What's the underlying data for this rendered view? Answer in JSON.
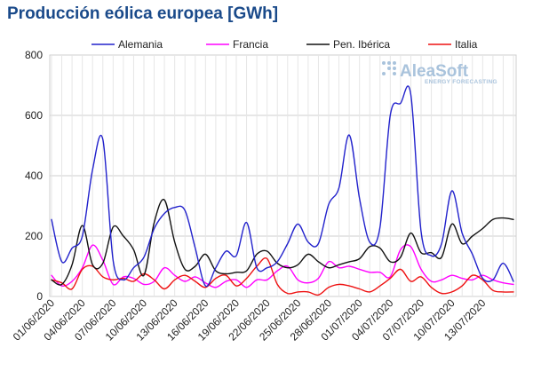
{
  "chart_data": {
    "type": "line",
    "title": "Producción eólica europea [GWh]",
    "xlabel": "",
    "ylabel": "",
    "ylim": [
      0,
      800
    ],
    "yticks": [
      0,
      200,
      400,
      600,
      800
    ],
    "grid": true,
    "legend": "top",
    "x_labels": [
      "01/06/2020",
      "04/06/2020",
      "07/06/2020",
      "10/06/2020",
      "13/06/2020",
      "16/06/2020",
      "19/06/2020",
      "22/06/2020",
      "25/06/2020",
      "28/06/2020",
      "01/07/2020",
      "04/07/2020",
      "07/07/2020",
      "10/07/2020",
      "13/07/2020"
    ],
    "x": [
      "01/06",
      "02/06",
      "03/06",
      "04/06",
      "05/06",
      "06/06",
      "07/06",
      "08/06",
      "09/06",
      "10/06",
      "11/06",
      "12/06",
      "13/06",
      "14/06",
      "15/06",
      "16/06",
      "17/06",
      "18/06",
      "19/06",
      "20/06",
      "21/06",
      "22/06",
      "23/06",
      "24/06",
      "25/06",
      "26/06",
      "27/06",
      "28/06",
      "29/06",
      "30/06",
      "01/07",
      "02/07",
      "03/07",
      "04/07",
      "05/07",
      "06/07",
      "07/07",
      "08/07",
      "09/07",
      "10/07",
      "11/07",
      "12/07",
      "13/07",
      "14/07",
      "15/07",
      "16/07"
    ],
    "series": [
      {
        "name": "Alemania",
        "color": "#2222cc",
        "values": [
          255,
          115,
          160,
          200,
          420,
          520,
          120,
          55,
          95,
          130,
          225,
          275,
          295,
          285,
          160,
          35,
          95,
          150,
          135,
          245,
          95,
          95,
          115,
          175,
          240,
          180,
          175,
          305,
          360,
          535,
          325,
          180,
          230,
          600,
          640,
          670,
          215,
          135,
          175,
          350,
          210,
          140,
          60,
          55,
          110,
          50
        ]
      },
      {
        "name": "Francia",
        "color": "#ff00ff",
        "values": [
          70,
          35,
          50,
          95,
          170,
          120,
          40,
          65,
          60,
          40,
          50,
          95,
          70,
          50,
          65,
          45,
          30,
          50,
          55,
          30,
          55,
          55,
          85,
          100,
          55,
          45,
          60,
          115,
          95,
          100,
          90,
          80,
          80,
          65,
          155,
          165,
          90,
          50,
          55,
          70,
          60,
          55,
          70,
          55,
          45,
          40
        ]
      },
      {
        "name": "Pen. Ibérica",
        "color": "#111111",
        "values": [
          55,
          40,
          105,
          235,
          105,
          110,
          230,
          200,
          155,
          70,
          245,
          320,
          180,
          90,
          100,
          140,
          85,
          75,
          80,
          85,
          140,
          150,
          110,
          95,
          105,
          140,
          115,
          95,
          105,
          115,
          125,
          165,
          160,
          115,
          130,
          210,
          145,
          145,
          130,
          240,
          175,
          200,
          225,
          255,
          260,
          255
        ]
      },
      {
        "name": "Italia",
        "color": "#ee1111",
        "values": [
          55,
          45,
          25,
          90,
          100,
          65,
          55,
          60,
          50,
          75,
          55,
          25,
          55,
          70,
          50,
          30,
          60,
          70,
          35,
          60,
          100,
          125,
          40,
          10,
          15,
          15,
          5,
          30,
          40,
          35,
          25,
          15,
          35,
          60,
          90,
          50,
          65,
          30,
          10,
          15,
          35,
          70,
          55,
          20,
          15,
          15
        ]
      }
    ]
  },
  "logo": {
    "name": "AleaSoft",
    "tagline": "ENERGY FORECASTING"
  }
}
